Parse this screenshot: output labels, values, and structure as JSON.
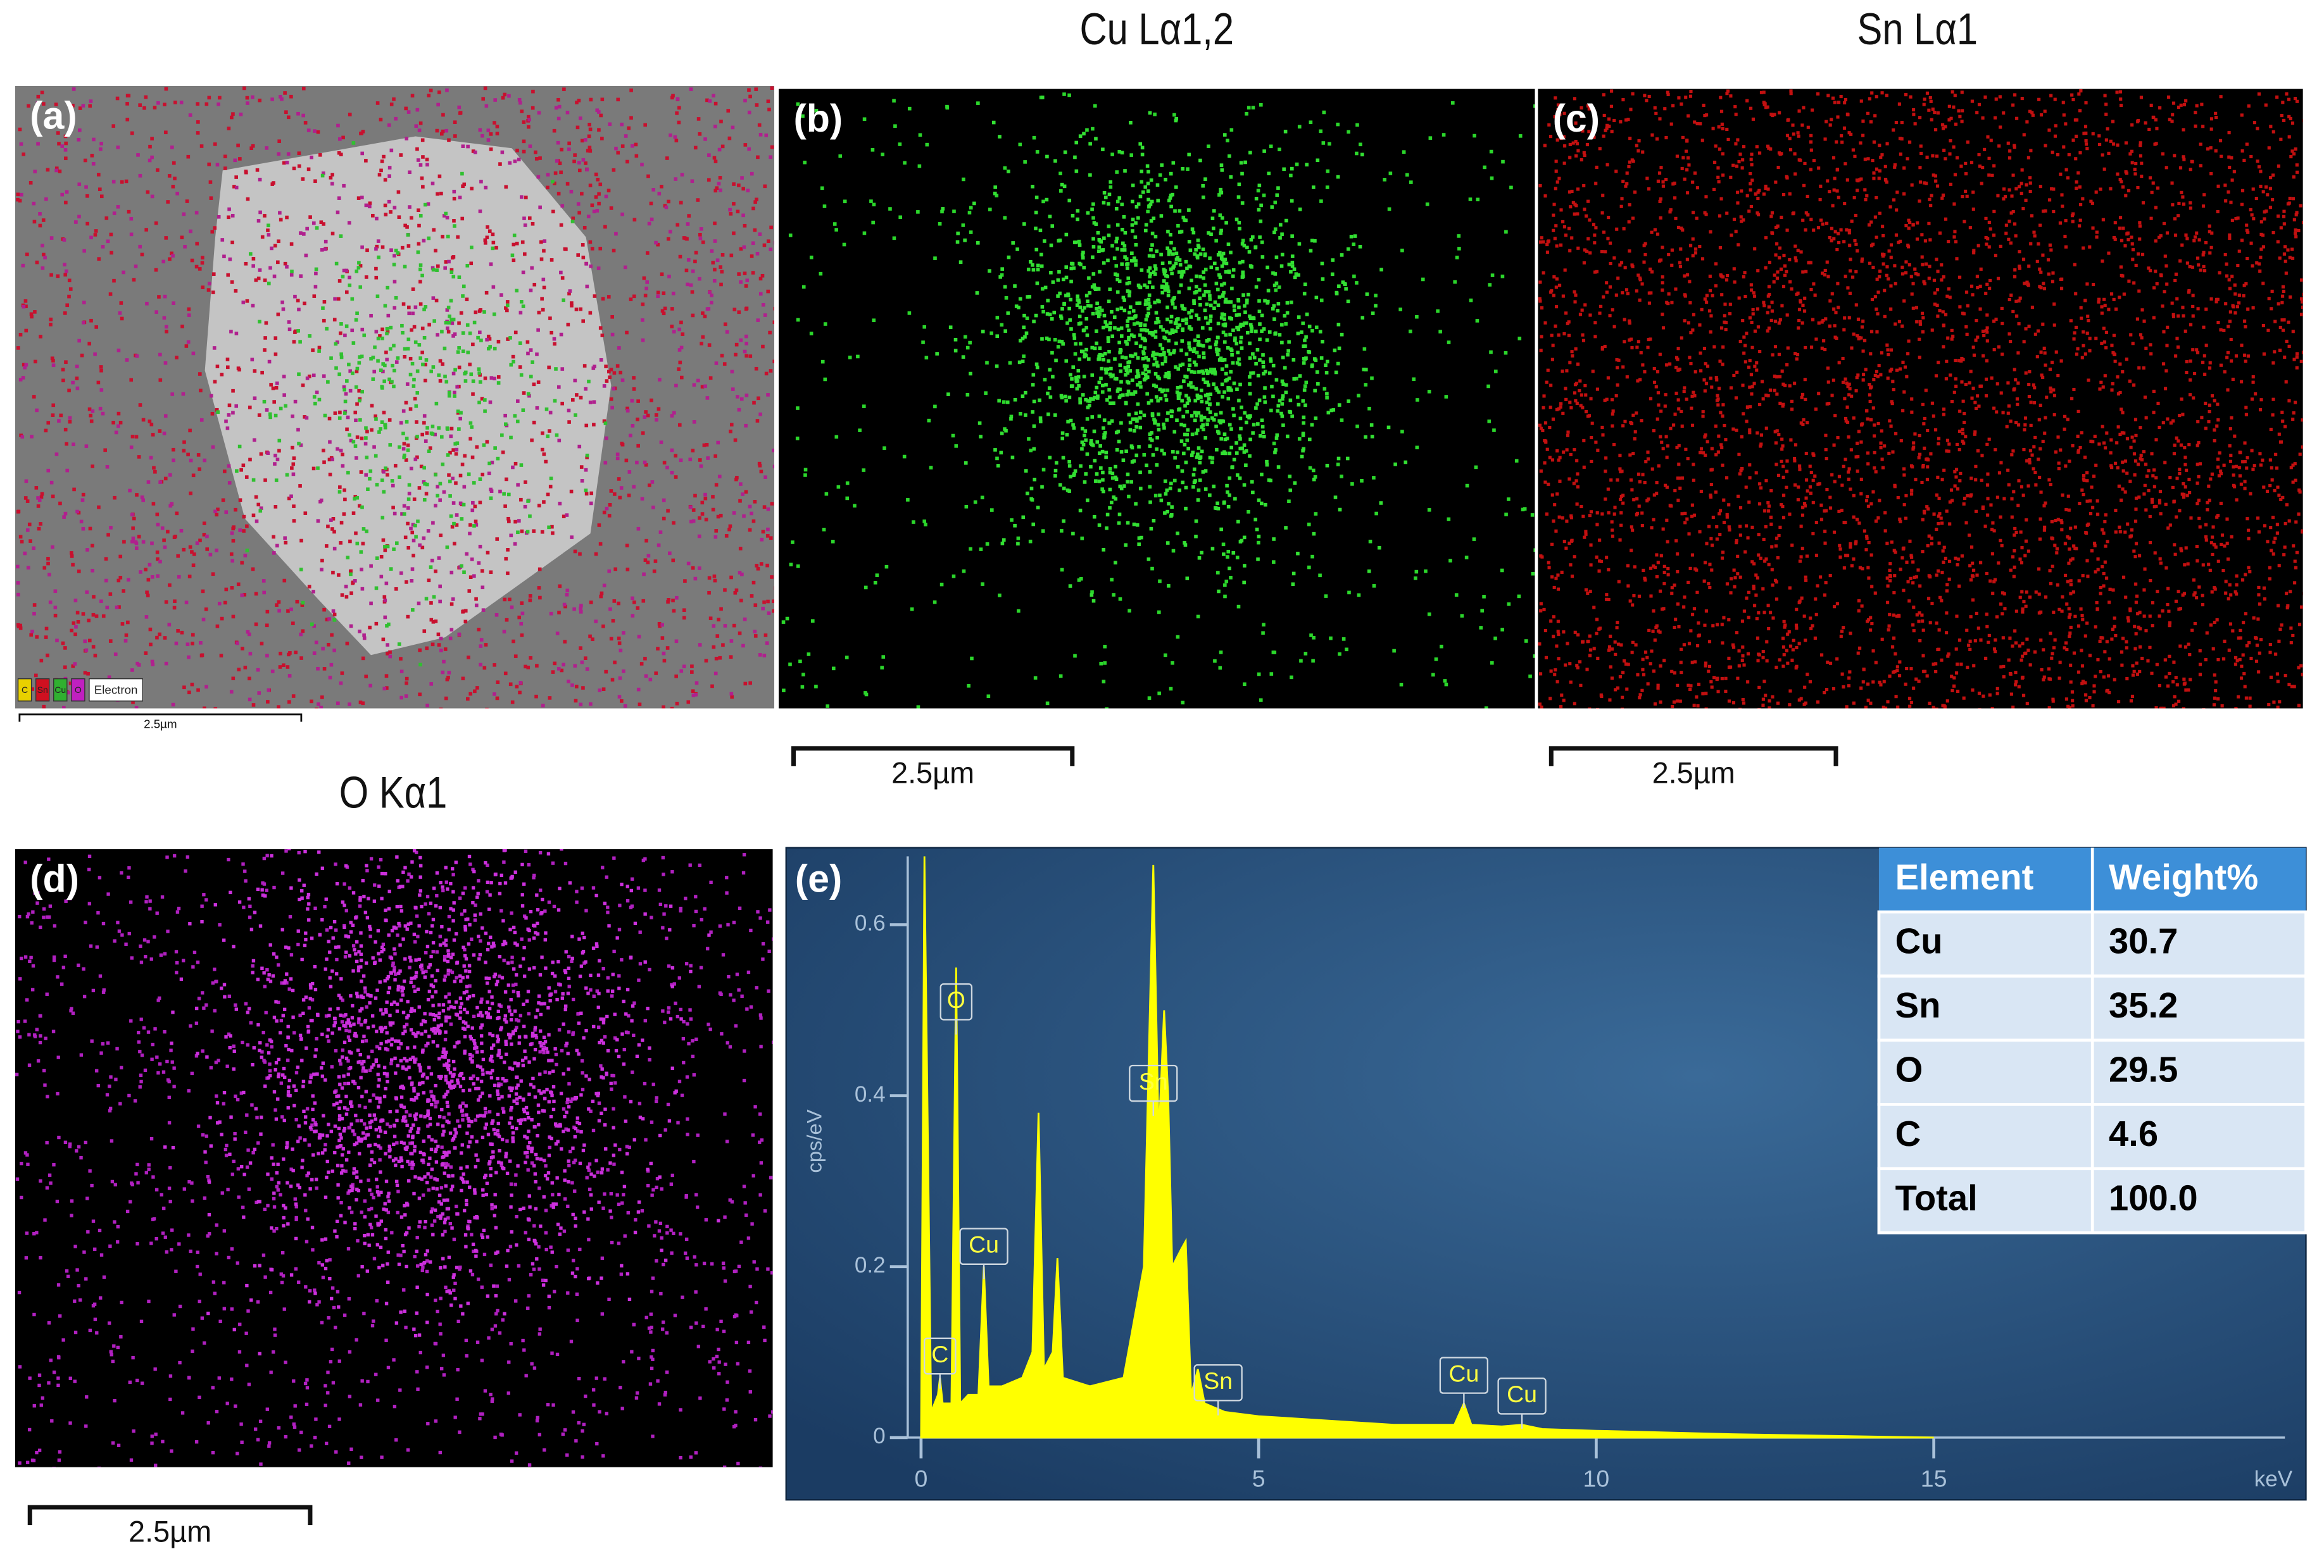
{
  "panels": [
    {
      "label": "(a)",
      "scale_bar": "2.5µm"
    },
    {
      "label": "(b)",
      "title": "Cu Lα1,2",
      "scale_bar": "2.5µm"
    },
    {
      "label": "(c)",
      "title": "Sn Lα1",
      "scale_bar": "2.5µm"
    },
    {
      "label": "(d)",
      "title": "O Kα1",
      "scale_bar": "2.5µm"
    }
  ],
  "legend_a": [
    "C",
    "Sn",
    "Cu",
    "O",
    "Electron"
  ],
  "spectrum": {
    "label": "(e)",
    "x_label": "keV",
    "y_label": "cps/eV",
    "xlim": [
      0,
      20.2
    ],
    "ylim": [
      0,
      0.68
    ],
    "xticks": [
      0,
      5,
      10,
      15
    ],
    "yticks": [
      0,
      0.2,
      0.4,
      0.6
    ],
    "color": "#ffff00",
    "x": [
      0,
      0.05,
      0.15,
      0.25,
      0.28,
      0.32,
      0.45,
      0.52,
      0.58,
      0.7,
      0.85,
      0.93,
      1.0,
      1.2,
      1.5,
      1.65,
      1.74,
      1.82,
      1.95,
      2.02,
      2.1,
      2.5,
      3.0,
      3.3,
      3.44,
      3.52,
      3.6,
      3.66,
      3.72,
      3.85,
      3.92,
      4.0,
      4.1,
      4.2,
      4.5,
      5,
      6,
      7,
      7.9,
      8.04,
      8.15,
      8.6,
      8.9,
      9.2,
      10,
      12,
      15
    ],
    "y": [
      0,
      0.68,
      0.03,
      0.05,
      0.07,
      0.04,
      0.04,
      0.55,
      0.04,
      0.05,
      0.05,
      0.2,
      0.06,
      0.06,
      0.07,
      0.1,
      0.38,
      0.08,
      0.1,
      0.21,
      0.07,
      0.06,
      0.07,
      0.2,
      0.67,
      0.35,
      0.5,
      0.4,
      0.2,
      0.22,
      0.23,
      0.05,
      0.08,
      0.04,
      0.03,
      0.025,
      0.02,
      0.015,
      0.015,
      0.04,
      0.015,
      0.013,
      0.015,
      0.01,
      0.008,
      0.004,
      0
    ],
    "peaks": [
      {
        "label": "C",
        "energy": 0.28
      },
      {
        "label": "O",
        "energy": 0.52
      },
      {
        "label": "Cu",
        "energy": 0.93
      },
      {
        "label": "Sn",
        "energy": 3.44
      },
      {
        "label": "Sn",
        "energy": 4.4
      },
      {
        "label": "Cu",
        "energy": 8.04
      },
      {
        "label": "Cu",
        "energy": 8.9
      }
    ]
  },
  "table": {
    "header": [
      "Element",
      "Weight%"
    ],
    "rows": [
      [
        "Cu",
        "30.7"
      ],
      [
        "Sn",
        "35.2"
      ],
      [
        "O",
        "29.5"
      ],
      [
        "C",
        "4.6"
      ],
      [
        "Total",
        "100.0"
      ]
    ]
  }
}
